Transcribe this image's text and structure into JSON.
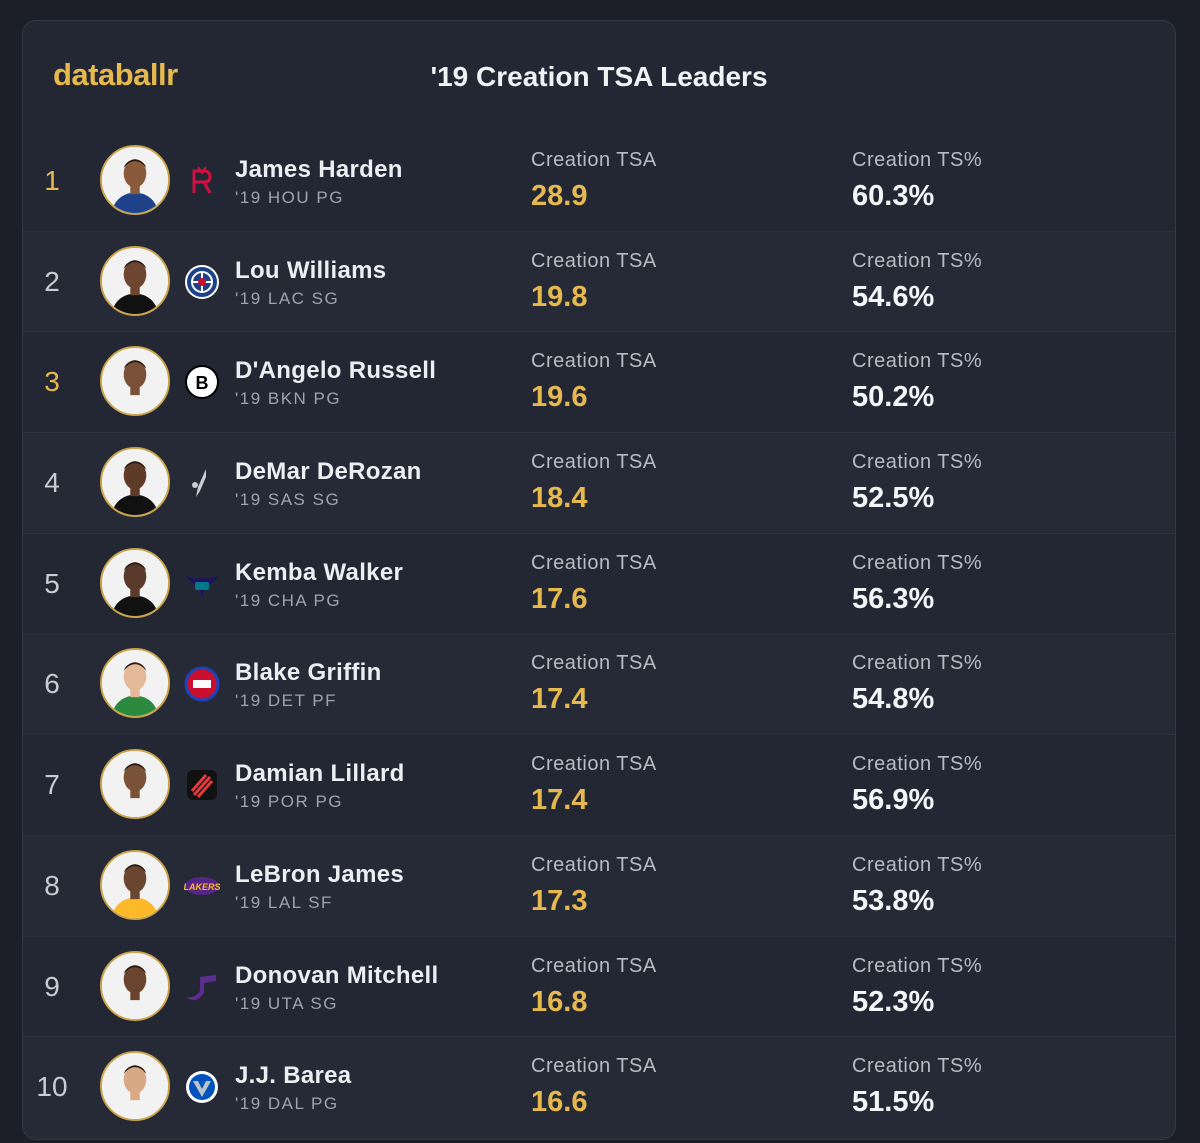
{
  "brand": "databallr",
  "title": "'19 Creation TSA Leaders",
  "colors": {
    "accent": "#e6b94f",
    "background": "#232734"
  },
  "stat_labels": {
    "tsa": "Creation TSA",
    "ts": "Creation TS%"
  },
  "players": [
    {
      "rank": "1",
      "name": "James Harden",
      "sub": "'19 HOU PG",
      "tsa": "28.9",
      "ts": "60.3%",
      "team_icon": "rockets-logo-icon"
    },
    {
      "rank": "2",
      "name": "Lou Williams",
      "sub": "'19 LAC SG",
      "tsa": "19.8",
      "ts": "54.6%",
      "team_icon": "clippers-logo-icon"
    },
    {
      "rank": "3",
      "name": "D'Angelo Russell",
      "sub": "'19 BKN PG",
      "tsa": "19.6",
      "ts": "50.2%",
      "team_icon": "nets-logo-icon"
    },
    {
      "rank": "4",
      "name": "DeMar DeRozan",
      "sub": "'19 SAS SG",
      "tsa": "18.4",
      "ts": "52.5%",
      "team_icon": "spurs-logo-icon"
    },
    {
      "rank": "5",
      "name": "Kemba Walker",
      "sub": "'19 CHA PG",
      "tsa": "17.6",
      "ts": "56.3%",
      "team_icon": "hornets-logo-icon"
    },
    {
      "rank": "6",
      "name": "Blake Griffin",
      "sub": "'19 DET PF",
      "tsa": "17.4",
      "ts": "54.8%",
      "team_icon": "pistons-logo-icon"
    },
    {
      "rank": "7",
      "name": "Damian Lillard",
      "sub": "'19 POR PG",
      "tsa": "17.4",
      "ts": "56.9%",
      "team_icon": "blazers-logo-icon"
    },
    {
      "rank": "8",
      "name": "LeBron James",
      "sub": "'19 LAL SF",
      "tsa": "17.3",
      "ts": "53.8%",
      "team_icon": "lakers-logo-icon"
    },
    {
      "rank": "9",
      "name": "Donovan Mitchell",
      "sub": "'19 UTA SG",
      "tsa": "16.8",
      "ts": "52.3%",
      "team_icon": "jazz-logo-icon"
    },
    {
      "rank": "10",
      "name": "J.J. Barea",
      "sub": "'19 DAL PG",
      "tsa": "16.6",
      "ts": "51.5%",
      "team_icon": "mavericks-logo-icon"
    }
  ]
}
